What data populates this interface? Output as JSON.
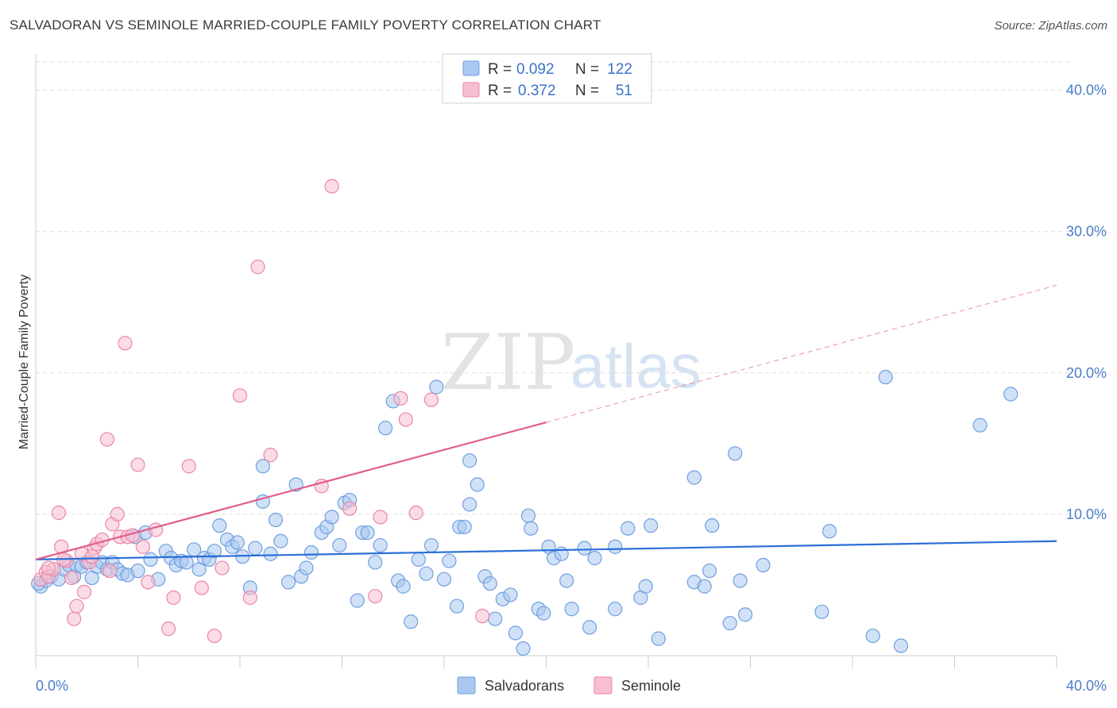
{
  "title": "SALVADORAN VS SEMINOLE MARRIED-COUPLE FAMILY POVERTY CORRELATION CHART",
  "source": "Source: ZipAtlas.com",
  "watermark": {
    "zip": "ZIP",
    "atlas": "atlas"
  },
  "legend_top": [
    {
      "r_label": "R =",
      "r_value": "0.092",
      "n_label": "N =",
      "n_value": "122"
    },
    {
      "r_label": "R =",
      "r_value": "0.372",
      "n_label": "N =",
      "n_value": "51"
    }
  ],
  "legend_bottom": [
    "Salvadorans",
    "Seminole"
  ],
  "colors": {
    "blue_fill": "#aac8f0",
    "blue_stroke": "#6f9fdf",
    "blue_line": "#2b6fd6",
    "pink_fill": "#f7bfd1",
    "pink_stroke": "#eb86a7",
    "pink_line": "#e0608a",
    "grid": "#dddddd",
    "tick_text": "#4a7cc8"
  },
  "chart_data": {
    "type": "scatter",
    "ylabel": "Married-Couple Family Poverty",
    "xlim": [
      0,
      40
    ],
    "ylim": [
      0,
      42
    ],
    "x_tick_labels": [
      "0.0%",
      "40.0%"
    ],
    "y_ticks": [
      10,
      20,
      30,
      40
    ],
    "y_tick_labels": [
      "10.0%",
      "20.0%",
      "30.0%",
      "40.0%"
    ],
    "series": [
      {
        "name": "Salvadorans",
        "regression": {
          "x0": 0,
          "y0": 6.8,
          "x1": 40,
          "y1": 8.1,
          "solid_until": 40
        },
        "points": [
          [
            0.2,
            4.9
          ],
          [
            0.4,
            5.3
          ],
          [
            0.6,
            5.6
          ],
          [
            0.9,
            5.4
          ],
          [
            1.1,
            6.1
          ],
          [
            1.3,
            6.4
          ],
          [
            1.5,
            5.6
          ],
          [
            1.6,
            6.4
          ],
          [
            1.8,
            6.3
          ],
          [
            2.0,
            6.6
          ],
          [
            2.2,
            5.5
          ],
          [
            2.4,
            6.3
          ],
          [
            2.6,
            6.6
          ],
          [
            2.8,
            6.1
          ],
          [
            3.0,
            6.6
          ],
          [
            3.2,
            6.1
          ],
          [
            3.4,
            5.8
          ],
          [
            3.6,
            5.7
          ],
          [
            3.9,
            8.4
          ],
          [
            4.3,
            8.7
          ],
          [
            4.0,
            6.0
          ],
          [
            4.5,
            6.8
          ],
          [
            4.8,
            5.4
          ],
          [
            5.1,
            7.4
          ],
          [
            5.3,
            6.9
          ],
          [
            5.5,
            6.4
          ],
          [
            5.7,
            6.7
          ],
          [
            5.9,
            6.6
          ],
          [
            6.2,
            7.5
          ],
          [
            6.4,
            6.1
          ],
          [
            6.6,
            6.9
          ],
          [
            6.8,
            6.8
          ],
          [
            7.0,
            7.4
          ],
          [
            7.2,
            9.2
          ],
          [
            7.5,
            8.2
          ],
          [
            7.7,
            7.7
          ],
          [
            7.9,
            8.0
          ],
          [
            8.1,
            7.0
          ],
          [
            8.4,
            4.8
          ],
          [
            8.6,
            7.6
          ],
          [
            8.9,
            10.9
          ],
          [
            8.9,
            13.4
          ],
          [
            9.2,
            7.2
          ],
          [
            9.4,
            9.6
          ],
          [
            9.6,
            8.1
          ],
          [
            9.9,
            5.2
          ],
          [
            10.2,
            12.1
          ],
          [
            10.4,
            5.6
          ],
          [
            10.6,
            6.2
          ],
          [
            10.8,
            7.3
          ],
          [
            11.2,
            8.7
          ],
          [
            11.4,
            9.1
          ],
          [
            11.6,
            9.8
          ],
          [
            11.9,
            7.8
          ],
          [
            12.1,
            10.8
          ],
          [
            12.3,
            11.0
          ],
          [
            12.6,
            3.9
          ],
          [
            12.8,
            8.7
          ],
          [
            13.0,
            8.7
          ],
          [
            13.3,
            6.6
          ],
          [
            13.5,
            7.8
          ],
          [
            13.7,
            16.1
          ],
          [
            14.0,
            18.0
          ],
          [
            14.2,
            5.3
          ],
          [
            14.4,
            4.9
          ],
          [
            14.7,
            2.4
          ],
          [
            15.0,
            6.8
          ],
          [
            15.3,
            5.8
          ],
          [
            15.5,
            7.8
          ],
          [
            15.7,
            19.0
          ],
          [
            16.0,
            5.4
          ],
          [
            16.2,
            6.7
          ],
          [
            16.5,
            3.5
          ],
          [
            16.6,
            9.1
          ],
          [
            16.8,
            9.1
          ],
          [
            17.0,
            10.7
          ],
          [
            17.3,
            12.1
          ],
          [
            17.0,
            13.8
          ],
          [
            17.6,
            5.6
          ],
          [
            17.8,
            5.1
          ],
          [
            18.0,
            2.6
          ],
          [
            18.3,
            4.0
          ],
          [
            18.6,
            4.3
          ],
          [
            18.8,
            1.6
          ],
          [
            19.1,
            0.5
          ],
          [
            19.3,
            9.9
          ],
          [
            19.4,
            9.0
          ],
          [
            19.7,
            3.3
          ],
          [
            19.9,
            3.0
          ],
          [
            20.1,
            7.7
          ],
          [
            20.3,
            6.9
          ],
          [
            20.6,
            7.2
          ],
          [
            20.8,
            5.3
          ],
          [
            21.0,
            3.3
          ],
          [
            21.5,
            7.6
          ],
          [
            21.7,
            2.0
          ],
          [
            21.9,
            6.9
          ],
          [
            22.7,
            7.7
          ],
          [
            22.7,
            3.3
          ],
          [
            23.2,
            9.0
          ],
          [
            23.7,
            4.1
          ],
          [
            23.9,
            4.9
          ],
          [
            24.1,
            9.2
          ],
          [
            24.4,
            1.2
          ],
          [
            25.8,
            5.2
          ],
          [
            25.8,
            12.6
          ],
          [
            26.2,
            4.9
          ],
          [
            26.4,
            6.0
          ],
          [
            26.5,
            9.2
          ],
          [
            27.2,
            2.3
          ],
          [
            27.4,
            14.3
          ],
          [
            27.6,
            5.3
          ],
          [
            27.8,
            2.9
          ],
          [
            28.5,
            6.4
          ],
          [
            30.8,
            3.1
          ],
          [
            31.1,
            8.8
          ],
          [
            32.8,
            1.4
          ],
          [
            33.3,
            19.7
          ],
          [
            33.9,
            0.7
          ],
          [
            37.0,
            16.3
          ],
          [
            38.2,
            18.5
          ],
          [
            0.1,
            5.1
          ]
        ]
      },
      {
        "name": "Seminole",
        "regression": {
          "x0": 0,
          "y0": 6.8,
          "x1": 40,
          "y1": 26.2,
          "solid_until": 20
        },
        "points": [
          [
            0.2,
            5.4
          ],
          [
            0.4,
            5.9
          ],
          [
            0.5,
            5.6
          ],
          [
            0.7,
            6.1
          ],
          [
            0.9,
            10.1
          ],
          [
            1.0,
            7.7
          ],
          [
            1.2,
            6.7
          ],
          [
            1.4,
            5.5
          ],
          [
            1.5,
            2.6
          ],
          [
            1.6,
            3.5
          ],
          [
            1.8,
            7.2
          ],
          [
            1.9,
            4.5
          ],
          [
            2.1,
            6.6
          ],
          [
            2.3,
            7.6
          ],
          [
            2.4,
            7.9
          ],
          [
            2.6,
            8.2
          ],
          [
            2.8,
            15.3
          ],
          [
            2.9,
            6.0
          ],
          [
            3.0,
            9.3
          ],
          [
            3.2,
            10.0
          ],
          [
            3.3,
            8.4
          ],
          [
            3.5,
            22.1
          ],
          [
            3.6,
            8.4
          ],
          [
            3.8,
            8.5
          ],
          [
            4.0,
            13.5
          ],
          [
            4.2,
            7.7
          ],
          [
            4.4,
            5.2
          ],
          [
            4.7,
            8.9
          ],
          [
            5.2,
            1.9
          ],
          [
            5.4,
            4.1
          ],
          [
            6.0,
            13.4
          ],
          [
            6.5,
            4.8
          ],
          [
            7.0,
            1.4
          ],
          [
            7.3,
            6.2
          ],
          [
            8.0,
            18.4
          ],
          [
            8.4,
            4.1
          ],
          [
            8.7,
            27.5
          ],
          [
            9.2,
            14.2
          ],
          [
            11.2,
            12.0
          ],
          [
            11.6,
            33.2
          ],
          [
            12.3,
            10.4
          ],
          [
            13.3,
            4.2
          ],
          [
            13.5,
            9.8
          ],
          [
            14.3,
            18.2
          ],
          [
            14.5,
            16.7
          ],
          [
            14.9,
            10.1
          ],
          [
            15.5,
            18.1
          ],
          [
            17.5,
            2.8
          ],
          [
            0.5,
            6.2
          ],
          [
            1.1,
            6.8
          ],
          [
            2.2,
            7.0
          ]
        ]
      }
    ]
  }
}
